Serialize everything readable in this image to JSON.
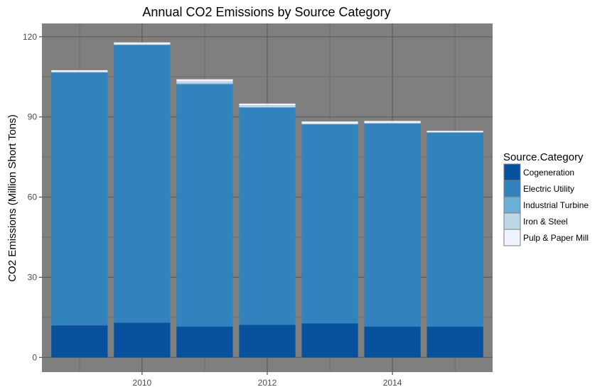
{
  "chart_data": {
    "type": "bar",
    "stacked": true,
    "title": "Annual CO2 Emissions by Source Category",
    "xlabel": "",
    "ylabel": "CO2 Emissions (Million Short Tons)",
    "x": [
      2009,
      2010,
      2011,
      2012,
      2013,
      2014,
      2015
    ],
    "x_tick_labels": [
      "2010",
      "2012",
      "2014"
    ],
    "x_ticks": [
      2010,
      2012,
      2014
    ],
    "y_tick_labels": [
      "0",
      "30",
      "60",
      "90",
      "120"
    ],
    "y_ticks": [
      0,
      30,
      60,
      90,
      120
    ],
    "ylim": [
      -5.5,
      125
    ],
    "xlim": [
      2008.4,
      2015.6
    ],
    "grid": true,
    "legend": {
      "title": "Source.Category",
      "position": "right"
    },
    "series": [
      {
        "name": "Cogeneration",
        "color": "#08519c",
        "values": [
          12.0,
          13.0,
          11.5,
          12.2,
          12.7,
          11.5,
          11.5
        ]
      },
      {
        "name": "Electric Utility",
        "color": "#3182bd",
        "values": [
          94.6,
          103.9,
          90.7,
          81.3,
          74.5,
          76.0,
          72.6
        ]
      },
      {
        "name": "Industrial Turbine",
        "color": "#6baed6",
        "values": [
          0.1,
          0.1,
          0.3,
          0.1,
          0.1,
          0.1,
          0.1
        ]
      },
      {
        "name": "Iron & Steel",
        "color": "#bdd7e7",
        "values": [
          0.2,
          0.2,
          0.8,
          0.8,
          0.2,
          0.2,
          0.1
        ]
      },
      {
        "name": "Pulp & Paper Mill",
        "color": "#eff3ff",
        "values": [
          0.6,
          0.7,
          0.8,
          0.6,
          0.8,
          0.7,
          0.5
        ]
      }
    ],
    "colors": {
      "panel_background": "#7f7f7f",
      "grid_major": "#5e5e5e",
      "grid_minor": "#6e6e6e"
    }
  }
}
